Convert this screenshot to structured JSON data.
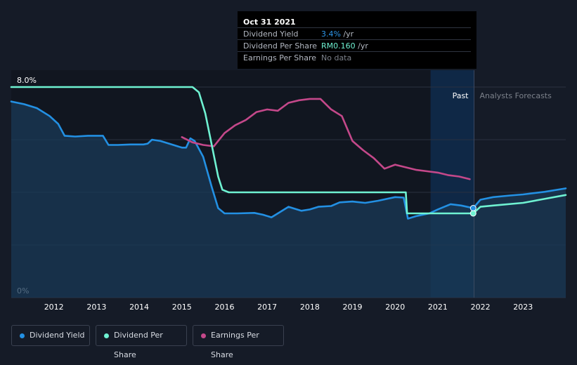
{
  "colors": {
    "background": "#151b27",
    "plot_past": "#111620",
    "forecast_band": "#0f2846",
    "grid": "#2a3140",
    "dividend_yield": "#2390e3",
    "dividend_per_share": "#6ff2d2",
    "earnings_per_share": "#c4488a",
    "area_fill": "#1a3a57",
    "yield_text": "#2d95e8",
    "dps_text": "#6ff2d2",
    "muted_text": "#7b808a"
  },
  "tooltip": {
    "date": "Oct 31 2021",
    "rows": [
      {
        "label": "Dividend Yield",
        "value": "3.4%",
        "unit": " /yr"
      },
      {
        "label": "Dividend Per Share",
        "value": "RM0.160",
        "unit": " /yr"
      },
      {
        "label": "Earnings Per Share",
        "value": "No data",
        "unit": ""
      }
    ]
  },
  "regions": {
    "past": "Past",
    "forecast": "Analysts Forecasts"
  },
  "legend": [
    {
      "label": "Dividend Yield",
      "color": "#2390e3",
      "icon": "dot-icon"
    },
    {
      "label": "Dividend Per Share",
      "color": "#6ff2d2",
      "icon": "dot-icon"
    },
    {
      "label": "Earnings Per Share",
      "color": "#c4488a",
      "icon": "dot-icon"
    }
  ],
  "chart_data": {
    "type": "line",
    "title": "",
    "xlabel": "",
    "ylabel": "",
    "ylim": [
      0,
      8
    ],
    "xlim": [
      2011.0,
      2024.0
    ],
    "y_tick_labels": [
      {
        "value": 8,
        "label": "8.0%"
      },
      {
        "value": 0,
        "label": "0%"
      }
    ],
    "y_gridlines": [
      0,
      2,
      4,
      6,
      8
    ],
    "x_ticks": [
      2012,
      2013,
      2014,
      2015,
      2016,
      2017,
      2018,
      2019,
      2020,
      2021,
      2022,
      2023
    ],
    "past_start": 2020.83,
    "forecast_start": 2021.85,
    "series": [
      {
        "name": "Dividend Yield",
        "filled": true,
        "points": [
          [
            2011.0,
            7.45
          ],
          [
            2011.3,
            7.35
          ],
          [
            2011.6,
            7.2
          ],
          [
            2011.9,
            6.9
          ],
          [
            2012.1,
            6.6
          ],
          [
            2012.25,
            6.15
          ],
          [
            2012.5,
            6.12
          ],
          [
            2012.8,
            6.15
          ],
          [
            2013.15,
            6.15
          ],
          [
            2013.28,
            5.8
          ],
          [
            2013.5,
            5.8
          ],
          [
            2013.8,
            5.82
          ],
          [
            2014.1,
            5.82
          ],
          [
            2014.2,
            5.85
          ],
          [
            2014.3,
            6.0
          ],
          [
            2014.5,
            5.95
          ],
          [
            2014.8,
            5.8
          ],
          [
            2015.0,
            5.7
          ],
          [
            2015.1,
            5.7
          ],
          [
            2015.2,
            6.05
          ],
          [
            2015.3,
            5.95
          ],
          [
            2015.5,
            5.35
          ],
          [
            2015.7,
            4.2
          ],
          [
            2015.85,
            3.4
          ],
          [
            2016.0,
            3.2
          ],
          [
            2016.3,
            3.2
          ],
          [
            2016.7,
            3.22
          ],
          [
            2016.9,
            3.15
          ],
          [
            2017.1,
            3.05
          ],
          [
            2017.3,
            3.25
          ],
          [
            2017.5,
            3.45
          ],
          [
            2017.8,
            3.3
          ],
          [
            2018.0,
            3.35
          ],
          [
            2018.2,
            3.45
          ],
          [
            2018.5,
            3.48
          ],
          [
            2018.7,
            3.62
          ],
          [
            2019.0,
            3.65
          ],
          [
            2019.3,
            3.6
          ],
          [
            2019.6,
            3.68
          ],
          [
            2020.0,
            3.82
          ],
          [
            2020.2,
            3.8
          ],
          [
            2020.3,
            3.0
          ],
          [
            2020.5,
            3.1
          ],
          [
            2020.8,
            3.2
          ],
          [
            2021.0,
            3.35
          ],
          [
            2021.3,
            3.55
          ],
          [
            2021.55,
            3.5
          ],
          [
            2021.83,
            3.4
          ],
          [
            2022.0,
            3.72
          ],
          [
            2022.3,
            3.82
          ],
          [
            2022.7,
            3.88
          ],
          [
            2023.0,
            3.92
          ],
          [
            2023.5,
            4.02
          ],
          [
            2024.0,
            4.15
          ]
        ]
      },
      {
        "name": "Dividend Per Share",
        "filled": false,
        "points": [
          [
            2011.0,
            8.0
          ],
          [
            2015.25,
            8.0
          ],
          [
            2015.4,
            7.8
          ],
          [
            2015.55,
            7.0
          ],
          [
            2015.7,
            5.8
          ],
          [
            2015.85,
            4.6
          ],
          [
            2015.95,
            4.1
          ],
          [
            2016.1,
            4.0
          ],
          [
            2020.25,
            4.0
          ],
          [
            2020.28,
            3.2
          ],
          [
            2021.83,
            3.2
          ],
          [
            2022.0,
            3.45
          ],
          [
            2022.3,
            3.5
          ],
          [
            2023.0,
            3.6
          ],
          [
            2023.5,
            3.75
          ],
          [
            2024.0,
            3.9
          ]
        ]
      },
      {
        "name": "Earnings Per Share",
        "filled": false,
        "points": [
          [
            2015.0,
            6.1
          ],
          [
            2015.25,
            5.9
          ],
          [
            2015.5,
            5.8
          ],
          [
            2015.75,
            5.75
          ],
          [
            2016.0,
            6.25
          ],
          [
            2016.25,
            6.55
          ],
          [
            2016.5,
            6.75
          ],
          [
            2016.75,
            7.05
          ],
          [
            2017.0,
            7.15
          ],
          [
            2017.25,
            7.1
          ],
          [
            2017.5,
            7.4
          ],
          [
            2017.75,
            7.5
          ],
          [
            2018.0,
            7.55
          ],
          [
            2018.25,
            7.55
          ],
          [
            2018.5,
            7.15
          ],
          [
            2018.75,
            6.9
          ],
          [
            2019.0,
            5.95
          ],
          [
            2019.25,
            5.6
          ],
          [
            2019.5,
            5.3
          ],
          [
            2019.75,
            4.9
          ],
          [
            2020.0,
            5.05
          ],
          [
            2020.25,
            4.95
          ],
          [
            2020.5,
            4.85
          ],
          [
            2020.75,
            4.8
          ],
          [
            2021.0,
            4.75
          ],
          [
            2021.25,
            4.65
          ],
          [
            2021.5,
            4.6
          ],
          [
            2021.75,
            4.5
          ]
        ]
      }
    ],
    "markers": [
      {
        "series": "Dividend Yield",
        "x": 2021.83,
        "y": 3.4
      },
      {
        "series": "Dividend Per Share",
        "x": 2021.83,
        "y": 3.2
      }
    ]
  }
}
